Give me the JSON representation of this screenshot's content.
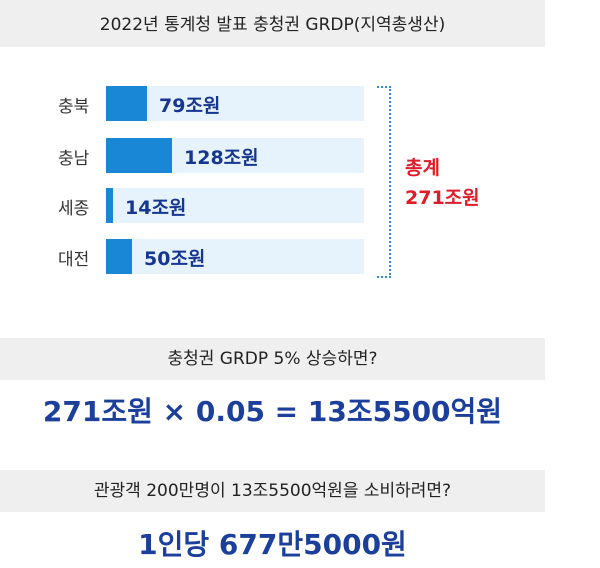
{
  "chart_data": {
    "type": "bar",
    "orientation": "horizontal",
    "title": "2022년 통계청 발표 충청권 GRDP(지역총생산)",
    "categories": [
      "충북",
      "충남",
      "세종",
      "대전"
    ],
    "values": [
      79,
      128,
      14,
      50
    ],
    "value_labels": [
      "79조원",
      "128조원",
      "14조원",
      "50조원"
    ],
    "xlim": [
      0,
      500
    ],
    "total_label": [
      "총계",
      "271조원"
    ],
    "colors": {
      "bar": "#1a86d6",
      "track": "#e6f3fc",
      "value_text": "#17368f",
      "total_text": "#e01c2a"
    }
  },
  "section2": {
    "question": "충청권 GRDP 5% 상승하면?",
    "formula": "271조원 × 0.05 = 13조5500억원"
  },
  "section3": {
    "question": "관광객 200만명이 13조5500억원을 소비하려면?",
    "answer": "1인당 677만5000원"
  },
  "colors": {
    "band_bg": "#efefef",
    "formula_text": "#1b3f9a"
  }
}
